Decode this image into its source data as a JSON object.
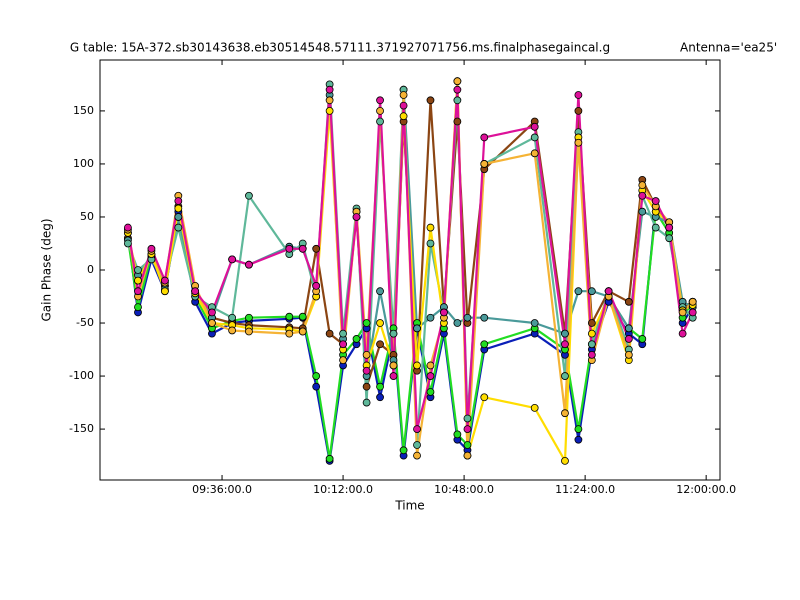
{
  "chart_data": {
    "type": "line",
    "title": "G table: 15A-372.sb30143638.eb30514548.57111.371927071756.ms.finalphasegaincal.g",
    "antenna": "Antenna='ea25'",
    "x_label": "Time",
    "y_label": "Gain Phase (deg)",
    "x": [
      "09:08:00",
      "09:11:00",
      "09:15:00",
      "09:19:00",
      "09:23:00",
      "09:28:00",
      "09:33:00",
      "09:39:00",
      "09:44:00",
      "09:56:00",
      "10:00:00",
      "10:04:00",
      "10:08:00",
      "10:12:00",
      "10:16:00",
      "10:19:00",
      "10:23:00",
      "10:27:00",
      "10:30:00",
      "10:34:00",
      "10:38:00",
      "10:42:00",
      "10:46:00",
      "10:49:00",
      "10:54:00",
      "11:09:00",
      "11:18:00",
      "11:22:00",
      "11:26:00",
      "11:31:00",
      "11:37:00",
      "11:41:00",
      "11:45:00",
      "11:49:00",
      "11:53:00",
      "11:56:00"
    ],
    "series": [
      {
        "color": "#0a1fb8",
        "values": [
          35,
          -40,
          10,
          -20,
          55,
          -30,
          -60,
          -50,
          -48,
          -46,
          -45,
          -110,
          -180,
          -90,
          -70,
          -55,
          -120,
          -60,
          -175,
          -55,
          -120,
          -60,
          -160,
          -170,
          -75,
          -60,
          -80,
          -160,
          -75,
          -30,
          -60,
          -70,
          60,
          40,
          -50,
          -35
        ]
      },
      {
        "color": "#22dd22",
        "values": [
          30,
          -35,
          15,
          -15,
          50,
          -25,
          -55,
          -48,
          -45,
          -44,
          -44,
          -100,
          -178,
          -80,
          -65,
          -50,
          -110,
          -55,
          -170,
          -50,
          -115,
          -55,
          -155,
          -165,
          -70,
          -55,
          -75,
          -150,
          -70,
          -25,
          -55,
          -65,
          55,
          35,
          -45,
          -30
        ]
      },
      {
        "color": "#8b4513",
        "values": [
          30,
          -10,
          12,
          -15,
          60,
          -20,
          -45,
          -50,
          -52,
          -54,
          -55,
          20,
          -60,
          -70,
          55,
          -110,
          -70,
          -80,
          140,
          -95,
          160,
          -35,
          140,
          -50,
          95,
          140,
          -60,
          150,
          -50,
          -20,
          -30,
          85,
          60,
          40,
          -35,
          -30
        ]
      },
      {
        "color": "#4a9a9a",
        "values": [
          28,
          -5,
          14,
          -18,
          50,
          -20,
          -45,
          10,
          5,
          22,
          20,
          -15,
          165,
          -65,
          55,
          -100,
          -20,
          -85,
          170,
          -55,
          -45,
          -35,
          -50,
          -45,
          -45,
          -50,
          -60,
          -20,
          -20,
          -25,
          -55,
          55,
          50,
          45,
          -30,
          -35
        ]
      },
      {
        "color": "#5fb89a",
        "values": [
          25,
          0,
          10,
          -10,
          40,
          -25,
          -35,
          -45,
          70,
          15,
          25,
          -25,
          175,
          -60,
          58,
          -125,
          140,
          -60,
          170,
          -165,
          25,
          -40,
          160,
          -140,
          100,
          125,
          -100,
          130,
          -70,
          -20,
          -75,
          70,
          40,
          30,
          -35,
          -45
        ]
      },
      {
        "color": "#ffdd00",
        "values": [
          35,
          -10,
          15,
          -20,
          58,
          -22,
          -50,
          -52,
          -55,
          -56,
          -58,
          -25,
          150,
          -75,
          50,
          -90,
          -50,
          -90,
          145,
          -90,
          40,
          -50,
          178,
          -175,
          -120,
          -130,
          -180,
          125,
          -60,
          -25,
          -85,
          75,
          55,
          45,
          -38,
          -33
        ]
      },
      {
        "color": "#f5b335",
        "values": [
          38,
          -25,
          18,
          -12,
          70,
          -15,
          -50,
          -57,
          -58,
          -60,
          -58,
          -20,
          160,
          -85,
          55,
          -80,
          150,
          -90,
          165,
          -175,
          -90,
          -45,
          178,
          -175,
          100,
          110,
          -135,
          120,
          -85,
          -25,
          -80,
          80,
          60,
          45,
          -40,
          -30
        ]
      },
      {
        "color": "#dd1199",
        "values": [
          40,
          -20,
          20,
          -10,
          65,
          -20,
          -40,
          10,
          5,
          20,
          20,
          -15,
          170,
          -70,
          50,
          -95,
          160,
          -100,
          155,
          -150,
          -100,
          -40,
          170,
          -150,
          125,
          135,
          -70,
          165,
          -80,
          -20,
          -65,
          70,
          65,
          40,
          -60,
          -40
        ]
      }
    ],
    "xlim": [
      "08:59:42",
      "12:04:07"
    ],
    "xticks": [
      "09:36:00.0",
      "10:12:00.0",
      "10:48:00.0",
      "11:24:00.0",
      "12:00:00.0"
    ],
    "ylim": [
      -198,
      198
    ],
    "yticks": [
      -150,
      -100,
      -50,
      0,
      50,
      100,
      150
    ],
    "grid": false
  }
}
